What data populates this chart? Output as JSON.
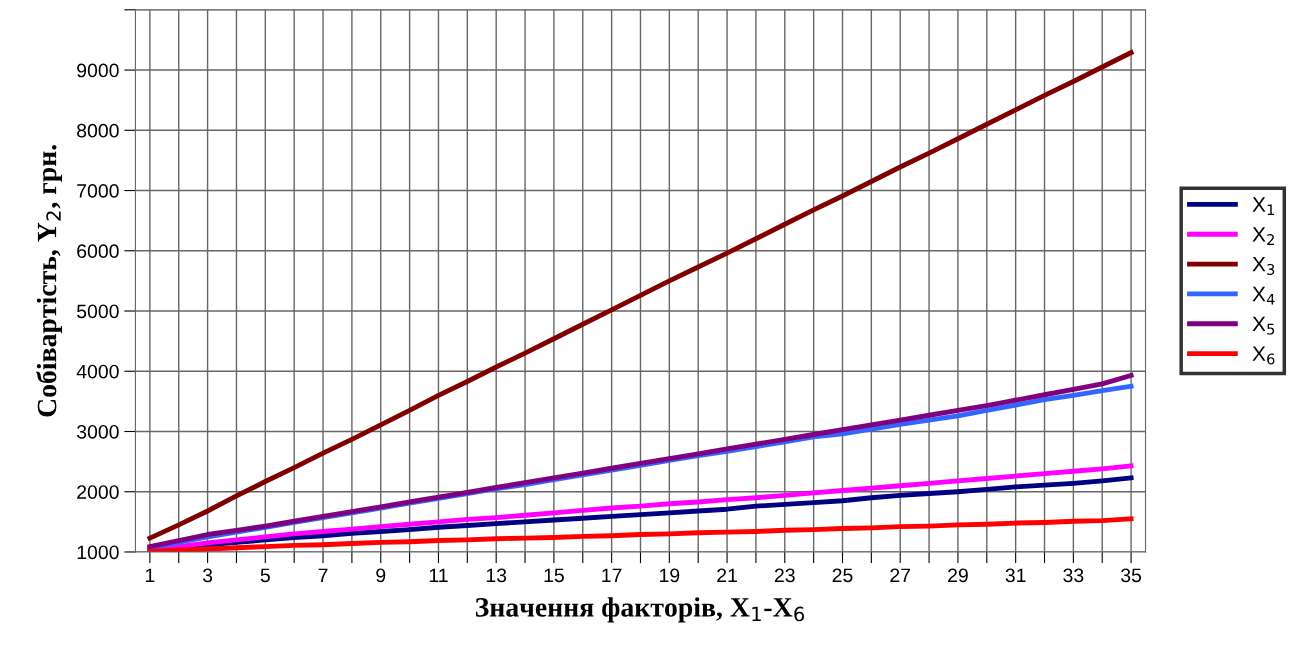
{
  "chart_data": {
    "type": "line",
    "xlabel": "Значення факторів, X$_{1}$-X$_{6}$",
    "ylabel": "Собівартість, Y$_{2}$, грн.",
    "categories": [
      "1",
      null,
      "3",
      null,
      "5",
      null,
      "7",
      null,
      "9",
      null,
      "11",
      null,
      "13",
      null,
      "15",
      null,
      "17",
      null,
      "19",
      null,
      "21",
      null,
      "23",
      null,
      "25",
      null,
      "27",
      null,
      "29",
      null,
      "31",
      null,
      "33",
      null,
      "35"
    ],
    "ylim": [
      1000,
      10000
    ],
    "yticks": [
      1000,
      2000,
      3000,
      4000,
      5000,
      6000,
      7000,
      8000,
      9000,
      {
        "value": 10000,
        "label": null
      }
    ],
    "grid": true,
    "legend": "right",
    "line_style": "solid",
    "marker": "none",
    "series": [
      {
        "name": "X$_{1}$",
        "color": "#000080",
        "values": [
          1040,
          1080,
          1120,
          1160,
          1200,
          1240,
          1270,
          1310,
          1340,
          1370,
          1410,
          1440,
          1470,
          1500,
          1530,
          1560,
          1590,
          1620,
          1650,
          1680,
          1710,
          1760,
          1790,
          1820,
          1850,
          1900,
          1940,
          1970,
          2000,
          2040,
          2080,
          2110,
          2140,
          2180,
          2230
        ]
      },
      {
        "name": "X$_{2}$",
        "color": "#ff00ff",
        "values": [
          1040,
          1090,
          1150,
          1200,
          1250,
          1300,
          1340,
          1380,
          1420,
          1460,
          1500,
          1540,
          1570,
          1610,
          1650,
          1690,
          1730,
          1760,
          1800,
          1830,
          1870,
          1900,
          1940,
          1980,
          2020,
          2060,
          2100,
          2140,
          2180,
          2220,
          2260,
          2300,
          2340,
          2380,
          2430
        ]
      },
      {
        "name": "X$_{3}$",
        "color": "#800000",
        "values": [
          1230,
          1450,
          1680,
          1930,
          2170,
          2400,
          2640,
          2870,
          3110,
          3350,
          3600,
          3830,
          4070,
          4300,
          4540,
          4780,
          5020,
          5260,
          5500,
          5730,
          5960,
          6200,
          6440,
          6680,
          6910,
          7150,
          7390,
          7620,
          7860,
          8100,
          8340,
          8580,
          8810,
          9050,
          9290
        ]
      },
      {
        "name": "X$_{4}$",
        "color": "#3366ff",
        "values": [
          1070,
          1160,
          1250,
          1330,
          1410,
          1490,
          1570,
          1650,
          1730,
          1810,
          1890,
          1970,
          2050,
          2120,
          2200,
          2280,
          2360,
          2440,
          2520,
          2600,
          2670,
          2750,
          2830,
          2910,
          2960,
          3040,
          3120,
          3190,
          3260,
          3350,
          3440,
          3530,
          3600,
          3680,
          3750
        ]
      },
      {
        "name": "X$_{5}$",
        "color": "#800080",
        "values": [
          1090,
          1190,
          1290,
          1360,
          1430,
          1510,
          1590,
          1670,
          1750,
          1830,
          1910,
          1990,
          2070,
          2150,
          2230,
          2310,
          2390,
          2470,
          2550,
          2630,
          2710,
          2790,
          2870,
          2950,
          3030,
          3110,
          3190,
          3270,
          3350,
          3430,
          3520,
          3610,
          3700,
          3790,
          3930
        ]
      },
      {
        "name": "X$_{6}$",
        "color": "#ff0000",
        "values": [
          1010,
          1030,
          1050,
          1070,
          1090,
          1110,
          1120,
          1140,
          1160,
          1170,
          1190,
          1200,
          1220,
          1230,
          1240,
          1260,
          1270,
          1290,
          1300,
          1320,
          1330,
          1340,
          1360,
          1370,
          1390,
          1400,
          1420,
          1430,
          1450,
          1460,
          1480,
          1490,
          1510,
          1520,
          1550
        ]
      }
    ]
  }
}
